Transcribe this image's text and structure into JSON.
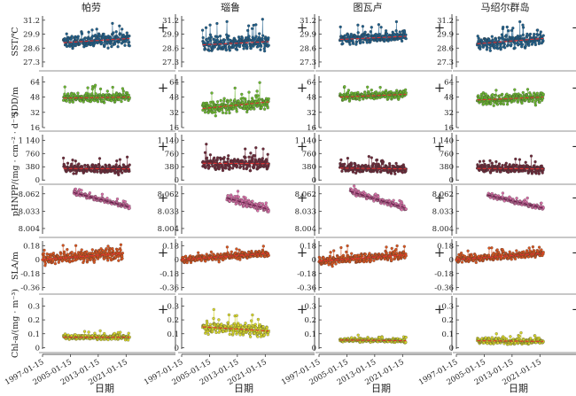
{
  "chart_data": {
    "type": "scatter",
    "xlabel": "日期",
    "x_ticks": [
      "1997-01-15",
      "2005-01-15",
      "2013-01-15",
      "2021-01-15"
    ],
    "trend_marker": "+",
    "columns": [
      {
        "title": "帕劳"
      },
      {
        "title": "瑙鲁"
      },
      {
        "title": "图瓦卢"
      },
      {
        "title": "马绍尔群岛"
      }
    ],
    "rows": [
      {
        "ylabel": "SST/℃",
        "yticks": [
          "31.2",
          "29.9",
          "28.6",
          "27.3"
        ],
        "ylim": [
          26.8,
          31.6
        ],
        "color": "#1f5f8b",
        "trend_color": "#e03030",
        "start_year": [
          2003,
          2003,
          2003,
          2003
        ],
        "end_year": [
          2022,
          2022,
          2022,
          2022
        ],
        "mean": [
          29.3,
          29.0,
          29.5,
          29.2
        ],
        "trend_start": [
          29.1,
          28.9,
          29.4,
          29.0
        ],
        "trend_end": [
          29.5,
          29.2,
          29.7,
          29.5
        ],
        "spread": [
          0.55,
          0.65,
          0.45,
          0.55
        ]
      },
      {
        "ylabel": "SDD/m",
        "yticks": [
          "64",
          "48",
          "32",
          "16"
        ],
        "ylim": [
          16,
          70
        ],
        "color": "#6ab82e",
        "trend_color": "#e03030",
        "start_year": [
          2003,
          2003,
          2003,
          2003
        ],
        "end_year": [
          2022,
          2022,
          2022,
          2022
        ],
        "mean": [
          48,
          41,
          50,
          47
        ],
        "trend_start": [
          47,
          36,
          48,
          45
        ],
        "trend_end": [
          48,
          43,
          51,
          48
        ],
        "spread": [
          4,
          6,
          4,
          5
        ]
      },
      {
        "ylabel": "NPP/(mg · cm⁻² · d⁻¹)",
        "yticks": [
          "1 140",
          "760",
          "380",
          "0"
        ],
        "ylim": [
          -20,
          1300
        ],
        "color": "#6e2a3a",
        "trend_color": "#e03030",
        "start_year": [
          2003,
          2003,
          2003,
          2003
        ],
        "end_year": [
          2022,
          2022,
          2022,
          2022
        ],
        "mean": [
          320,
          500,
          330,
          330
        ],
        "trend_start": [
          330,
          480,
          340,
          330
        ],
        "trend_end": [
          320,
          470,
          320,
          320
        ],
        "spread": [
          110,
          170,
          110,
          110
        ]
      },
      {
        "ylabel": "pH",
        "yticks": [
          "8.062",
          "8.033",
          "8.004"
        ],
        "ylim": [
          7.995,
          8.075
        ],
        "color": "#d96fa8",
        "trend_color": "#6a1a4a",
        "start_year": [
          2006,
          2010,
          2006,
          2006
        ],
        "end_year": [
          2022,
          2022,
          2022,
          2022
        ],
        "mean": [
          8.05,
          8.045,
          8.05,
          8.045
        ],
        "trend_start": [
          8.064,
          8.055,
          8.066,
          8.06
        ],
        "trend_end": [
          8.04,
          8.036,
          8.038,
          8.038
        ],
        "spread": [
          0.003,
          0.006,
          0.004,
          0.003
        ]
      },
      {
        "ylabel": "SLA/m",
        "yticks": [
          "0.18",
          "0",
          "-0.18",
          "-0.36"
        ],
        "ylim": [
          -0.4,
          0.24
        ],
        "color": "#d9541e",
        "trend_color": "#e03030",
        "start_year": [
          1997,
          1997,
          1997,
          1997
        ],
        "end_year": [
          2020,
          2022,
          2022,
          2022
        ],
        "mean": [
          0.05,
          0.05,
          0.02,
          0.04
        ],
        "trend_start": [
          0.0,
          0.0,
          -0.02,
          0.0
        ],
        "trend_end": [
          0.08,
          0.08,
          0.06,
          0.08
        ],
        "spread": [
          0.07,
          0.04,
          0.05,
          0.04
        ]
      },
      {
        "ylabel": "Chl-a/(mg · m⁻³)",
        "yticks": [
          "0.3",
          "0.2",
          "0.1",
          "0"
        ],
        "ylim": [
          -0.01,
          0.36
        ],
        "color": "#d8d82a",
        "trend_color": "#e03030",
        "start_year": [
          2003,
          2003,
          2003,
          2003
        ],
        "end_year": [
          2022,
          2022,
          2022,
          2022
        ],
        "mean": [
          0.075,
          0.14,
          0.055,
          0.05
        ],
        "trend_start": [
          0.075,
          0.15,
          0.055,
          0.05
        ],
        "trend_end": [
          0.075,
          0.12,
          0.05,
          0.045
        ],
        "spread": [
          0.015,
          0.04,
          0.012,
          0.02
        ]
      }
    ]
  }
}
